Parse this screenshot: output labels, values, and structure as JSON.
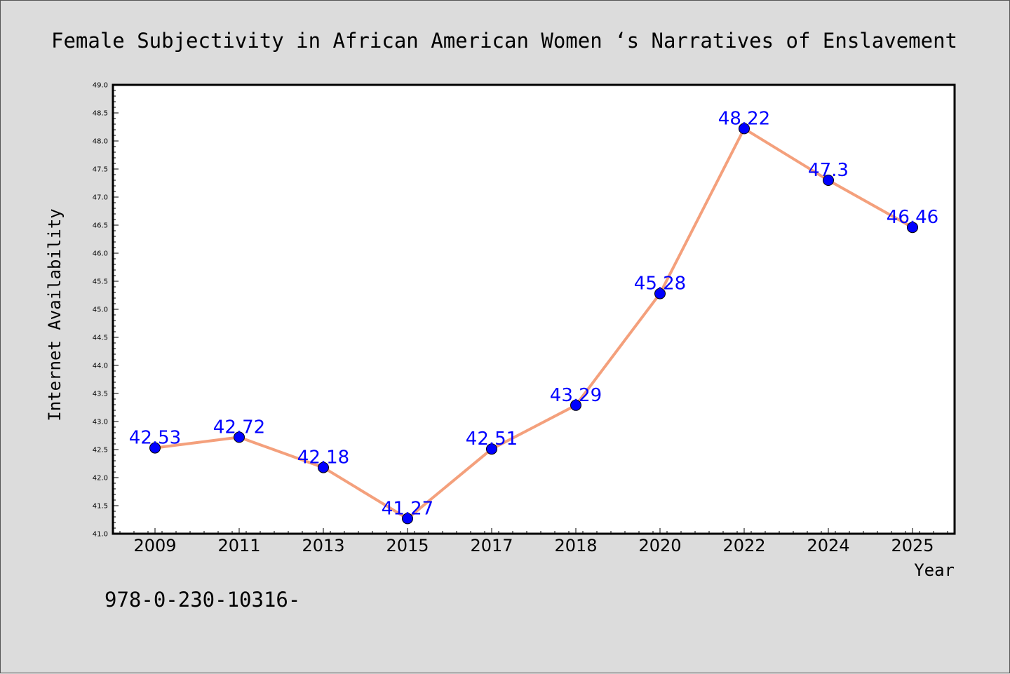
{
  "chart_data": {
    "type": "line",
    "title": "Female Subjectivity in African American Women ‘s Narratives of Enslavement",
    "xlabel": "Year",
    "ylabel": "Internet Availability",
    "categories": [
      "2009",
      "2011",
      "2013",
      "2015",
      "2017",
      "2018",
      "2020",
      "2022",
      "2024",
      "2025"
    ],
    "values": [
      42.53,
      42.72,
      42.18,
      41.27,
      42.51,
      43.29,
      45.28,
      48.22,
      47.3,
      46.46
    ],
    "data_labels": [
      "42.53",
      "42.72",
      "42.18",
      "41.27",
      "42.51",
      "43.29",
      "45.28",
      "48.22",
      "47.3",
      "46.46"
    ],
    "ylim": [
      41.0,
      49.0
    ],
    "yticks": [
      "41.0",
      "41.5",
      "42.0",
      "42.5",
      "43.0",
      "43.5",
      "44.0",
      "44.5",
      "45.0",
      "45.5",
      "46.0",
      "46.5",
      "47.0",
      "47.5",
      "48.0",
      "48.5",
      "49.0"
    ],
    "grid": false,
    "line_color": "#f4a07c",
    "marker_color": "#0000ff",
    "label_color": "#0000ff",
    "background_color": "#dcdcdc",
    "plot_background": "#ffffff"
  },
  "footer": {
    "isbn": "978-0-230-10316-"
  }
}
